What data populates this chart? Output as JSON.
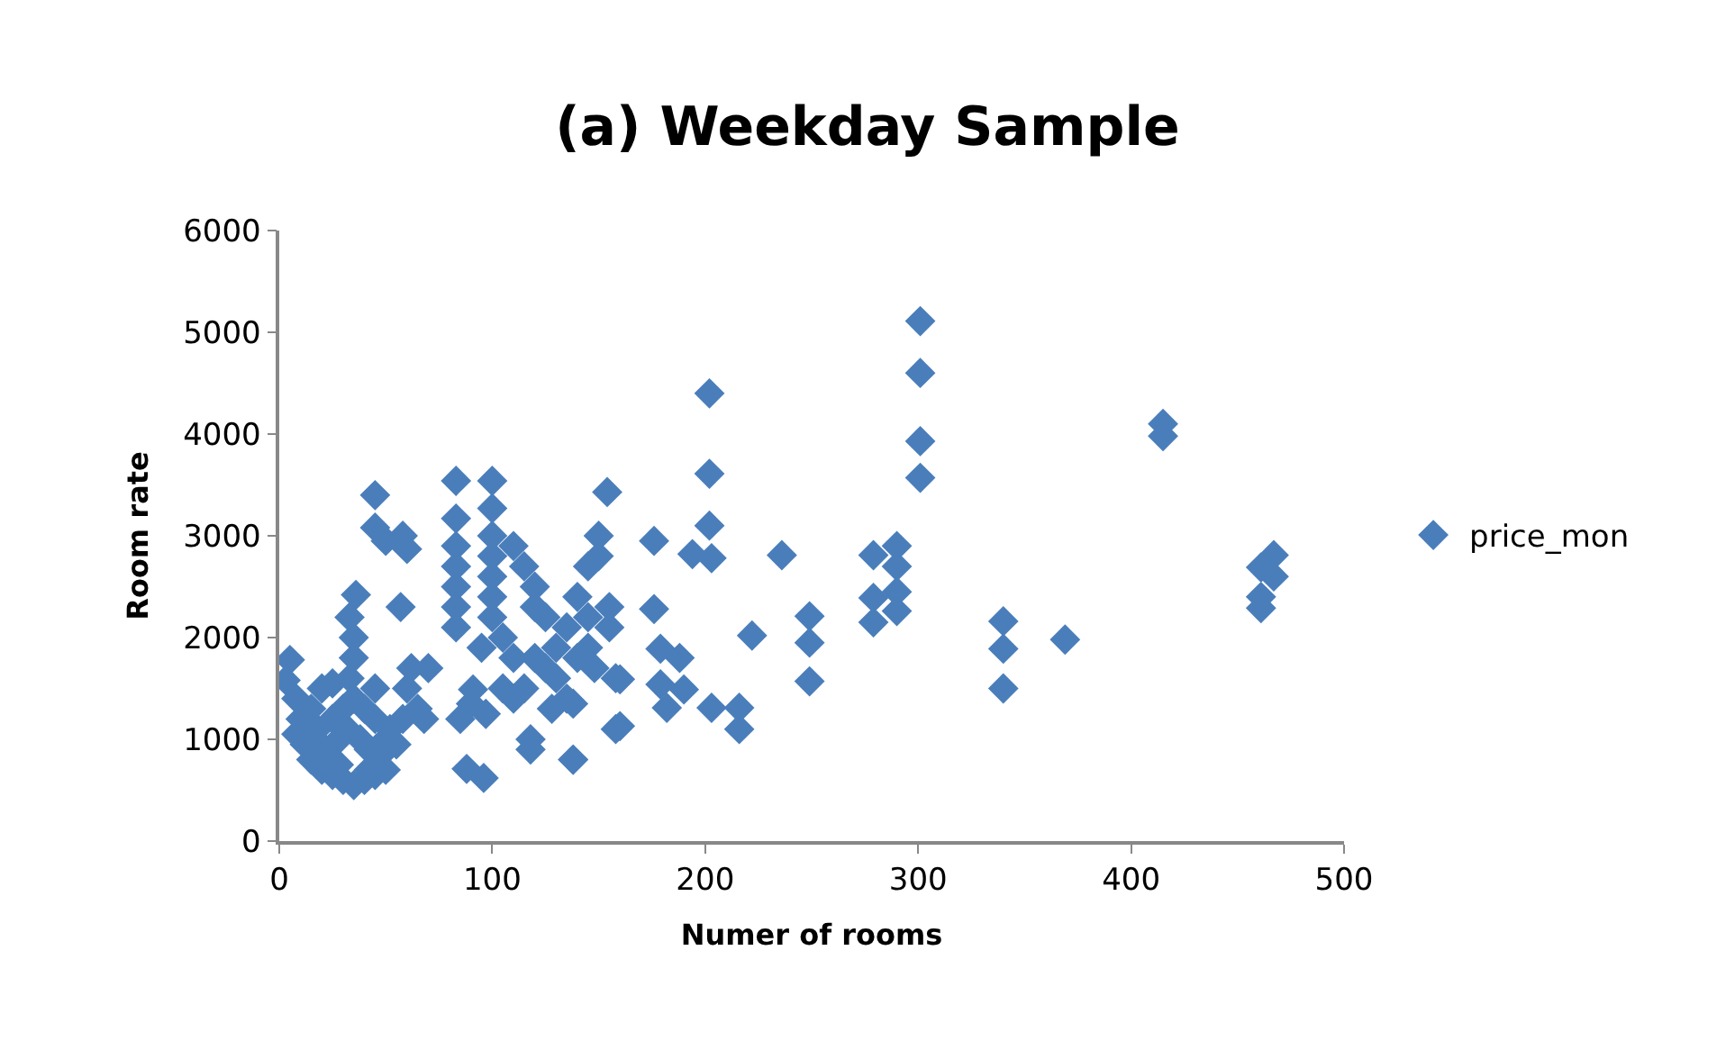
{
  "chart_data": {
    "type": "scatter",
    "title": "(a) Weekday Sample",
    "xlabel": "Numer of rooms",
    "ylabel": "Room rate",
    "xlim": [
      0,
      500
    ],
    "ylim": [
      0,
      6000
    ],
    "xticks": [
      0,
      100,
      200,
      300,
      400,
      500
    ],
    "yticks": [
      0,
      1000,
      2000,
      3000,
      4000,
      5000,
      6000
    ],
    "legend": "right",
    "marker": "diamond",
    "series": [
      {
        "name": "price_mon",
        "color": "#4a7ebb",
        "x": [
          5,
          3,
          8,
          10,
          8,
          12,
          15,
          20,
          25,
          30,
          35,
          40,
          45,
          50,
          22,
          28,
          32,
          38,
          42,
          48,
          25,
          30,
          20,
          35,
          40,
          45,
          52,
          55,
          50,
          33,
          35,
          35,
          33,
          36,
          45,
          42,
          28,
          18,
          15,
          25,
          58,
          60,
          62,
          65,
          68,
          70,
          57,
          60,
          58,
          45,
          45,
          50,
          83,
          100,
          100,
          83,
          83,
          83,
          83,
          83,
          83,
          91,
          88,
          96,
          100,
          100,
          100,
          100,
          100,
          105,
          110,
          110,
          115,
          120,
          115,
          118,
          118,
          125,
          125,
          130,
          130,
          135,
          135,
          138,
          140,
          140,
          145,
          145,
          148,
          150,
          154,
          150,
          155,
          155,
          158,
          158,
          85,
          90,
          95,
          97,
          105,
          110,
          120,
          120,
          128,
          145,
          176,
          202,
          202,
          202,
          194,
          203,
          236,
          176,
          222,
          249,
          249,
          249,
          179,
          188,
          179,
          190,
          182,
          203,
          216,
          216,
          160,
          160,
          138,
          138,
          301,
          301,
          301,
          301,
          279,
          290,
          290,
          279,
          290,
          279,
          290,
          340,
          340,
          340,
          369,
          415,
          415,
          461,
          467,
          467,
          461,
          461
        ],
        "values": [
          1780,
          1580,
          1400,
          1200,
          1050,
          950,
          800,
          700,
          650,
          600,
          550,
          600,
          650,
          700,
          900,
          1000,
          1100,
          1000,
          900,
          850,
          1200,
          1300,
          1500,
          1400,
          1300,
          1200,
          1100,
          950,
          1000,
          1600,
          1800,
          2000,
          2200,
          2420,
          1500,
          700,
          750,
          1100,
          1300,
          1550,
          1200,
          1500,
          1700,
          1300,
          1200,
          1700,
          2300,
          2870,
          3000,
          3080,
          3400,
          2950,
          3540,
          3540,
          3270,
          3170,
          2900,
          2700,
          2500,
          2300,
          2100,
          1490,
          710,
          620,
          3000,
          2800,
          2600,
          2400,
          2200,
          2000,
          1800,
          2900,
          2700,
          2500,
          1500,
          1000,
          900,
          2200,
          1700,
          1900,
          1600,
          2100,
          1400,
          800,
          1800,
          2400,
          2700,
          2200,
          1700,
          3000,
          3430,
          2800,
          2300,
          2100,
          1600,
          1100,
          1200,
          1350,
          1900,
          1250,
          1500,
          1400,
          1800,
          2300,
          1300,
          1900,
          2950,
          4400,
          3610,
          3100,
          2820,
          2780,
          2810,
          2280,
          2020,
          2210,
          1950,
          1570,
          1890,
          1800,
          1540,
          1490,
          1310,
          1310,
          1310,
          1100,
          1590,
          1130,
          800,
          1350,
          5110,
          4600,
          3930,
          3570,
          2810,
          2900,
          2700,
          2390,
          2450,
          2150,
          2260,
          2160,
          1890,
          1500,
          1980,
          4100,
          3980,
          2690,
          2810,
          2600,
          2400,
          2290
        ]
      }
    ]
  }
}
